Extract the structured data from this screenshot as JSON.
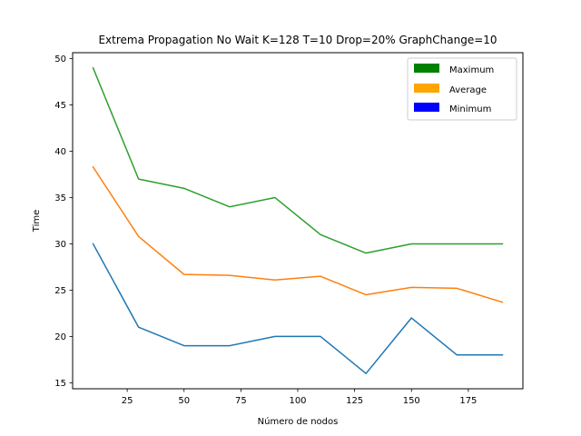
{
  "chart_data": {
    "type": "line",
    "title": "Extrema Propagation No Wait K=128 T=10 Drop=20% GraphChange=10",
    "xlabel": "Número de nodos",
    "ylabel": "Time",
    "xlim": [
      1,
      199
    ],
    "ylim": [
      14.35,
      50.65
    ],
    "x": [
      10,
      30,
      50,
      70,
      90,
      110,
      130,
      150,
      170,
      190
    ],
    "xticks": [
      25,
      50,
      75,
      100,
      125,
      150,
      175
    ],
    "yticks": [
      15,
      20,
      25,
      30,
      35,
      40,
      45,
      50
    ],
    "grid": false,
    "legend_position": "top-right",
    "legend": [
      {
        "label": "Maximum",
        "color": "#008000"
      },
      {
        "label": "Average",
        "color": "#ffa500"
      },
      {
        "label": "Minimum",
        "color": "#0000ff"
      }
    ],
    "series": [
      {
        "key": "minimum",
        "color": "#1f77b4",
        "values": [
          30,
          21,
          19,
          19,
          20,
          20,
          16,
          22,
          18,
          18
        ]
      },
      {
        "key": "average",
        "color": "#ff7f0e",
        "values": [
          38.3,
          30.8,
          26.7,
          26.6,
          26.1,
          26.5,
          24.5,
          25.3,
          25.2,
          23.7
        ]
      },
      {
        "key": "maximum",
        "color": "#2ca02c",
        "values": [
          49,
          37,
          36,
          34,
          35,
          31,
          29,
          30,
          30,
          30
        ]
      }
    ]
  }
}
